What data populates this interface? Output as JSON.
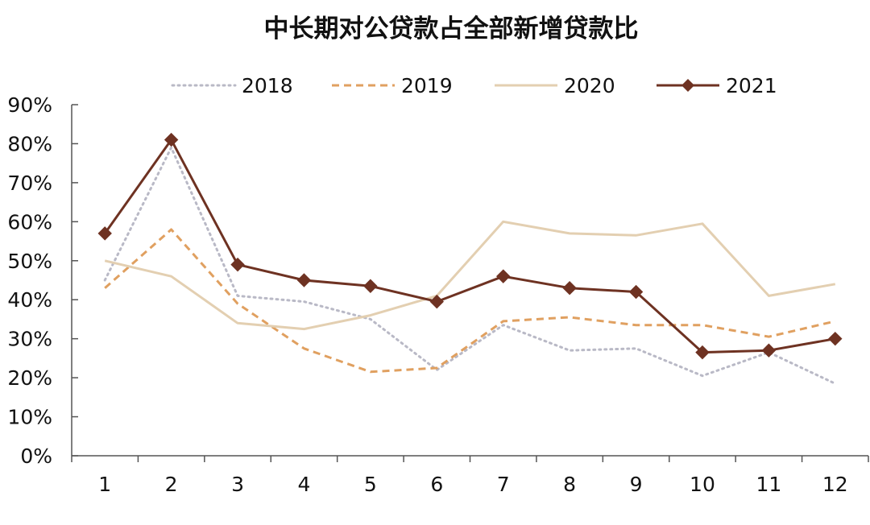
{
  "chart_data": {
    "type": "line",
    "title": "中长期对公贷款占全部新增贷款比",
    "xlabel": "",
    "ylabel": "",
    "x": [
      1,
      2,
      3,
      4,
      5,
      6,
      7,
      8,
      9,
      10,
      11,
      12
    ],
    "x_tick_labels": [
      "1",
      "2",
      "3",
      "4",
      "5",
      "6",
      "7",
      "8",
      "9",
      "10",
      "11",
      "12"
    ],
    "ylim": [
      0,
      90
    ],
    "y_ticks": [
      0,
      10,
      20,
      30,
      40,
      50,
      60,
      70,
      80,
      90
    ],
    "y_tick_labels": [
      "0%",
      "10%",
      "20%",
      "30%",
      "40%",
      "50%",
      "60%",
      "70%",
      "80%",
      "90%"
    ],
    "grid": false,
    "legend_position": "top",
    "series": [
      {
        "name": "2018",
        "color": "#b9b9c6",
        "style": "dotted",
        "values": [
          45,
          79,
          41,
          39.5,
          35,
          22,
          33.5,
          27,
          27.5,
          20.5,
          26.5,
          18.5
        ]
      },
      {
        "name": "2019",
        "color": "#e0a060",
        "style": "dashed",
        "values": [
          43,
          58,
          39,
          27.5,
          21.5,
          22.5,
          34.5,
          35.5,
          33.5,
          33.5,
          30.5,
          34.5
        ]
      },
      {
        "name": "2020",
        "color": "#e3cfb1",
        "style": "solid",
        "values": [
          50,
          46,
          34,
          32.5,
          36,
          41,
          60,
          57,
          56.5,
          59.5,
          41,
          44
        ]
      },
      {
        "name": "2021",
        "color": "#6e3222",
        "style": "solid-diamond",
        "values": [
          57,
          81,
          49,
          45,
          43.5,
          39.5,
          46,
          43,
          42,
          26.5,
          27,
          30
        ]
      }
    ]
  }
}
